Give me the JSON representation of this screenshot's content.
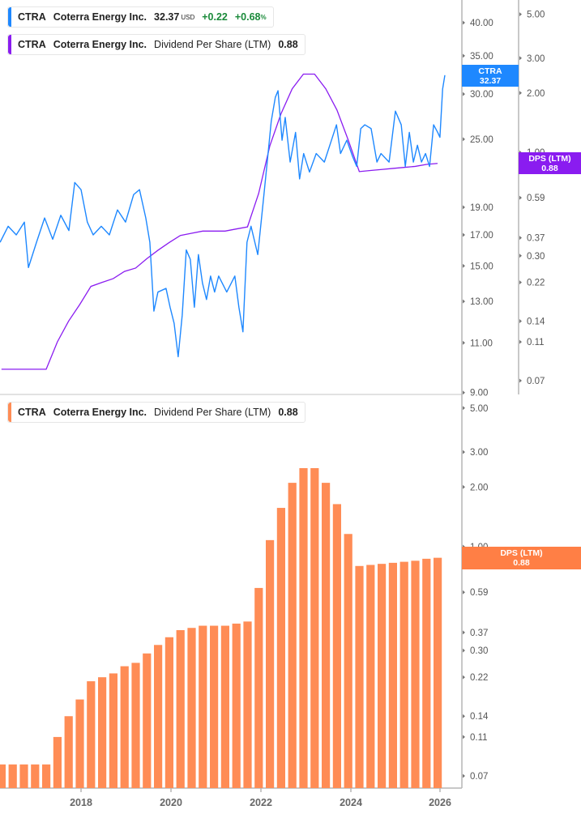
{
  "legends": {
    "price": {
      "ticker": "CTRA",
      "name": "Coterra Energy Inc.",
      "price": "32.37",
      "currency": "USD",
      "change": "+0.22",
      "change_pct": "+0.68",
      "pct_sign": "%",
      "color": "#1e88ff"
    },
    "dps_top": {
      "ticker": "CTRA",
      "name": "Coterra Energy Inc.",
      "metric": "Dividend Per Share (LTM)",
      "value": "0.88",
      "color": "#8a1cf0"
    },
    "dps_bottom": {
      "ticker": "CTRA",
      "name": "Coterra Energy Inc.",
      "metric": "Dividend Per Share (LTM)",
      "value": "0.88",
      "color": "#ff8c55"
    }
  },
  "tags": {
    "price": {
      "line1": "CTRA",
      "line2": "32.37",
      "color": "#1e88ff"
    },
    "dps_top": {
      "line1": "DPS (LTM)",
      "line2": "0.88",
      "color": "#8a1cf0"
    },
    "dps_bottom": {
      "line1": "DPS (LTM)",
      "line2": "0.88",
      "color": "#ff7f45"
    }
  },
  "chart_data": [
    {
      "type": "line",
      "scale": "log",
      "series": [
        {
          "name": "CTRA",
          "color": "#1e88ff",
          "x": [
            2016.2,
            2016.38,
            2016.56,
            2016.74,
            2016.83,
            2017.01,
            2017.19,
            2017.37,
            2017.55,
            2017.73,
            2017.86,
            2018.0,
            2018.14,
            2018.27,
            2018.45,
            2018.63,
            2018.81,
            2018.99,
            2019.17,
            2019.3,
            2019.44,
            2019.53,
            2019.62,
            2019.71,
            2019.89,
            2019.98,
            2020.07,
            2020.16,
            2020.25,
            2020.34,
            2020.43,
            2020.52,
            2020.61,
            2020.7,
            2020.79,
            2020.88,
            2020.97,
            2021.06,
            2021.24,
            2021.42,
            2021.51,
            2021.6,
            2021.69,
            2021.78,
            2021.93,
            2022.05,
            2022.14,
            2022.23,
            2022.32,
            2022.38,
            2022.47,
            2022.54,
            2022.65,
            2022.77,
            2022.86,
            2022.95,
            2023.08,
            2023.23,
            2023.41,
            2023.59,
            2023.68,
            2023.77,
            2023.91,
            2024.04,
            2024.13,
            2024.22,
            2024.31,
            2024.45,
            2024.58,
            2024.67,
            2024.85,
            2024.99,
            2025.12,
            2025.21,
            2025.3,
            2025.39,
            2025.48,
            2025.57,
            2025.66,
            2025.75,
            2025.84,
            2025.93,
            2025.98,
            2026.04,
            2026.09
          ],
          "y": [
            16.5,
            17.6,
            17.0,
            17.9,
            14.9,
            16.5,
            18.2,
            16.7,
            18.4,
            17.3,
            21.0,
            20.4,
            17.9,
            17.0,
            17.6,
            17.0,
            18.8,
            17.9,
            20.0,
            20.4,
            18.2,
            16.5,
            12.5,
            13.5,
            13.7,
            12.7,
            11.9,
            10.4,
            12.3,
            16.0,
            15.4,
            12.7,
            15.7,
            14.0,
            13.1,
            14.4,
            13.5,
            14.4,
            13.5,
            14.4,
            12.7,
            11.5,
            16.5,
            17.6,
            15.7,
            19.4,
            22.8,
            26.9,
            29.6,
            30.4,
            24.9,
            27.3,
            22.8,
            25.7,
            21.3,
            23.6,
            21.9,
            23.6,
            22.8,
            25.2,
            26.5,
            23.6,
            24.9,
            23.3,
            22.4,
            26.1,
            26.5,
            26.1,
            22.8,
            23.6,
            22.8,
            28.0,
            26.5,
            22.4,
            25.7,
            22.8,
            24.4,
            22.8,
            23.6,
            22.4,
            26.5,
            25.7,
            25.2,
            30.6,
            32.37
          ]
        },
        {
          "name": "DPS (LTM)",
          "color": "#8a1cf0",
          "axis": "right"
        }
      ],
      "y_axis_left": {
        "ticks": [
          40.0,
          35.0,
          30.0,
          25.0,
          19.0,
          17.0,
          15.0,
          13.0,
          11.0,
          9.0
        ],
        "tick_labels": [
          "40.00",
          "35.00",
          "30.00",
          "25.00",
          "19.00",
          "17.00",
          "15.00",
          "13.00",
          "11.00",
          "9.00"
        ]
      },
      "y_axis_right": {
        "ticks": [
          5.0,
          3.0,
          2.0,
          1.0,
          0.81,
          0.59,
          0.37,
          0.3,
          0.22,
          0.14,
          0.11,
          0.07
        ],
        "tick_labels": [
          "5.00",
          "3.00",
          "2.00",
          "1.00",
          "0.81",
          "0.59",
          "0.37",
          "0.30",
          "0.22",
          "0.14",
          "0.11",
          "0.07"
        ]
      }
    },
    {
      "type": "bar",
      "scale": "log",
      "series": [
        {
          "name": "DPS (LTM)",
          "color": "#ff8c55",
          "x": [
            "2016-03",
            "2016-06",
            "2016-09",
            "2016-12",
            "2017-03",
            "2017-06",
            "2017-09",
            "2017-12",
            "2018-03",
            "2018-06",
            "2018-09",
            "2018-12",
            "2019-03",
            "2019-06",
            "2019-09",
            "2019-12",
            "2020-03",
            "2020-06",
            "2020-09",
            "2020-12",
            "2021-03",
            "2021-06",
            "2021-09",
            "2021-12",
            "2022-03",
            "2022-06",
            "2022-09",
            "2022-12",
            "2023-03",
            "2023-06",
            "2023-09",
            "2023-12",
            "2024-03",
            "2024-06",
            "2024-09",
            "2024-12",
            "2025-03",
            "2025-06",
            "2025-09",
            "2025-12"
          ],
          "values": [
            0.08,
            0.08,
            0.08,
            0.08,
            0.08,
            0.11,
            0.14,
            0.17,
            0.21,
            0.22,
            0.23,
            0.25,
            0.26,
            0.29,
            0.32,
            0.35,
            0.38,
            0.39,
            0.4,
            0.4,
            0.4,
            0.41,
            0.42,
            0.62,
            1.08,
            1.57,
            2.1,
            2.49,
            2.49,
            2.1,
            1.64,
            1.16,
            0.8,
            0.81,
            0.82,
            0.83,
            0.84,
            0.85,
            0.87,
            0.88
          ]
        }
      ],
      "y_axis": {
        "ticks": [
          5.0,
          3.0,
          2.0,
          1.0,
          0.81,
          0.59,
          0.37,
          0.3,
          0.22,
          0.14,
          0.11,
          0.07
        ],
        "tick_labels": [
          "5.00",
          "3.00",
          "2.00",
          "1.00",
          "0.81",
          "0.59",
          "0.37",
          "0.30",
          "0.22",
          "0.14",
          "0.11",
          "0.07"
        ]
      },
      "x_axis": {
        "tick_labels": [
          "2018",
          "2020",
          "2022",
          "2024",
          "2026"
        ],
        "ticks": [
          2018,
          2020,
          2022,
          2024,
          2026
        ]
      }
    }
  ]
}
